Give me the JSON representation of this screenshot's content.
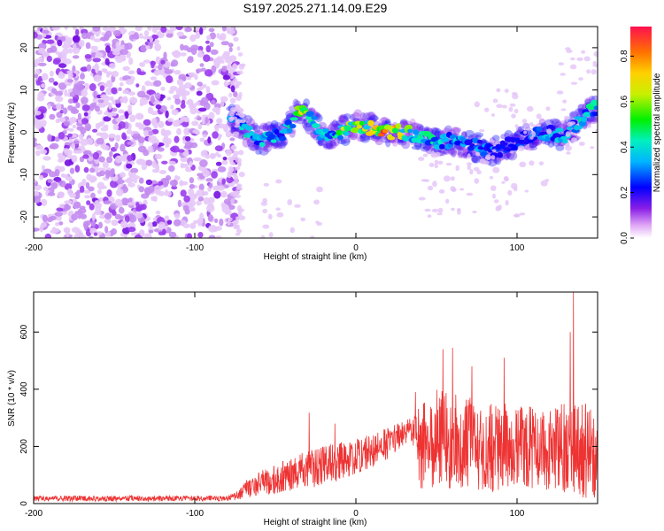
{
  "title": "S197.2025.271.14.09.E29",
  "chart_data": [
    {
      "type": "heatmap",
      "xlabel": "Height of straight line (km)",
      "ylabel": "Frequency (Hz)",
      "xlim": [
        -200,
        150
      ],
      "ylim": [
        -25,
        25
      ],
      "xticks": [
        -200,
        -100,
        0,
        100
      ],
      "xtick_labels": [
        "-200",
        "-100",
        "0",
        "100"
      ],
      "yticks": [
        -20,
        -10,
        0,
        10,
        20
      ],
      "ytick_labels": [
        "-20",
        "-10",
        "0",
        "10",
        "20"
      ],
      "colorbar": {
        "label": "Normalized spectral amplitude",
        "range": [
          0,
          0.93
        ],
        "ticks": [
          0,
          0.2,
          0.4,
          0.6,
          0.8
        ],
        "tick_labels": [
          "0.0",
          "0.2",
          "0.4",
          "0.6",
          "0.8"
        ]
      },
      "noise_region_km": [
        -200,
        -78
      ],
      "ridge": {
        "x": [
          -78,
          -70,
          -60,
          -52,
          -45,
          -40,
          -36,
          -32,
          -28,
          -22,
          -16,
          -10,
          -5,
          0,
          5,
          10,
          20,
          30,
          40,
          50,
          60,
          70,
          80,
          90,
          100,
          110,
          120,
          130,
          135,
          140,
          145,
          150
        ],
        "y": [
          4,
          1,
          -2,
          -1,
          -1,
          2,
          5,
          5,
          3,
          0,
          -1,
          0,
          1,
          2,
          1,
          1,
          0,
          0,
          -1,
          -2,
          -2,
          -3,
          -4,
          -4,
          -2,
          -1,
          0,
          -1,
          1,
          3,
          5,
          6
        ],
        "intensity": [
          0.3,
          0.45,
          0.35,
          0.4,
          0.3,
          0.45,
          0.75,
          0.8,
          0.4,
          0.45,
          0.35,
          0.5,
          0.65,
          0.7,
          0.6,
          0.75,
          0.85,
          0.55,
          0.45,
          0.4,
          0.35,
          0.3,
          0.3,
          0.25,
          0.3,
          0.3,
          0.35,
          0.35,
          0.35,
          0.4,
          0.45,
          0.4
        ]
      }
    },
    {
      "type": "line",
      "xlabel": "Height of straight line (km)",
      "ylabel": "SNR (10 * v/v)",
      "xlim": [
        -200,
        150
      ],
      "ylim": [
        0,
        740
      ],
      "xticks": [
        -200,
        -100,
        0,
        100
      ],
      "xtick_labels": [
        "-200",
        "-100",
        "0",
        "100"
      ],
      "yticks": [
        0,
        200,
        400,
        600
      ],
      "ytick_labels": [
        "0",
        "200",
        "400",
        "600"
      ],
      "series": [
        {
          "name": "SNR",
          "color": "#ee3333",
          "envelope_x": [
            -200,
            -80,
            -75,
            -70,
            -60,
            -50,
            -40,
            -30,
            -20,
            -10,
            0,
            10,
            20,
            30,
            35,
            40,
            50,
            60,
            70,
            80,
            90,
            100,
            110,
            120,
            130,
            140,
            150
          ],
          "envelope_mean": [
            18,
            18,
            25,
            45,
            70,
            85,
            100,
            120,
            135,
            150,
            165,
            185,
            210,
            245,
            260,
            200,
            230,
            220,
            215,
            200,
            200,
            190,
            190,
            190,
            190,
            190,
            170
          ],
          "envelope_spread": [
            10,
            10,
            15,
            30,
            45,
            55,
            60,
            70,
            70,
            70,
            60,
            60,
            55,
            45,
            40,
            150,
            170,
            170,
            160,
            160,
            160,
            150,
            150,
            150,
            160,
            170,
            150
          ],
          "peaks": [
            {
              "x": -29,
              "y": 318
            },
            {
              "x": -13,
              "y": 280
            },
            {
              "x": 37,
              "y": 390
            },
            {
              "x": 54,
              "y": 540
            },
            {
              "x": 60,
              "y": 545
            },
            {
              "x": 72,
              "y": 480
            },
            {
              "x": 92,
              "y": 510
            },
            {
              "x": 133,
              "y": 600
            },
            {
              "x": 135,
              "y": 740
            }
          ]
        }
      ]
    }
  ]
}
